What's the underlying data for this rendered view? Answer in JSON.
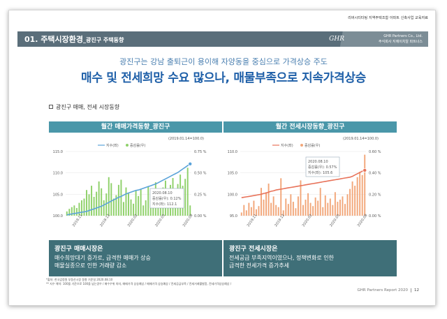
{
  "top_note": "리버시티타팅 지역주택조합 아파트 신축사업 교육자료",
  "header": {
    "title": "01. 주택시장환경",
    "subtitle": "_광진구 주택동향",
    "logo": "GHR",
    "company_en": "GHR Partners Co., Ltd.",
    "company_ko": "주식회사 지에이치알 파트너스"
  },
  "sub_headline": "광진구는 강남 출퇴근이 용이해 자양동을 중심으로 가격상승 주도",
  "headline": "매수 및 전세희망 수요 많으나, 매물부족으로 지속가격상승",
  "section_label": "광진구 매매, 전세 시장동향",
  "charts": [
    {
      "title": "월간 매매가격동향_광진구",
      "base_note": "(2019.01.14=100.0)",
      "legend_line": "지수(좌)",
      "legend_bar": "증감률(우)",
      "tooltip_date": "2020.08.10",
      "tooltip_rate": "증감률(우): 0.12%",
      "tooltip_index": "지수(좌): 112.1",
      "desc_title": "광진구 매매시장은",
      "desc_text_1": "매수희망대기 증가로, 급격한 매매가 상승",
      "desc_text_2": "매물실종으로 인한 거래량 감소"
    },
    {
      "title": "월간 전세시장동향_광진구",
      "base_note": "(2019.01.14=100.0)",
      "legend_line": "지수(좌)",
      "legend_bar": "증감률(우)",
      "tooltip_date": "2020.08.10",
      "tooltip_rate": "증감률(우): 0.57%",
      "tooltip_index": "지수(좌): 105.6",
      "desc_title": "광진구 전세시장은",
      "desc_text_1": "전세공급 부족지역이였으나, 정책변화로 인한",
      "desc_text_2": "급격한 전세가격 증가추세"
    }
  ],
  "chart_data": [
    {
      "type": "bar",
      "title": "월간 매매가격동향_광진구",
      "ylim_left": [
        100.0,
        115.0
      ],
      "ylim_right": [
        0.0,
        0.75
      ],
      "yticks_left": [
        "115.0",
        "110.0",
        "105.0",
        "100.0"
      ],
      "yticks_right": [
        "0.75 %",
        "0.50 %",
        "0.25 %",
        "0.00 %"
      ],
      "xticks": [
        "2019.11",
        "2019.12",
        "2020.02",
        "2020.05",
        "2020.08"
      ],
      "series": [
        {
          "name": "지수(좌)",
          "kind": "line",
          "color": "#5aa3d9",
          "values": [
            100.2,
            100.3,
            100.4,
            100.5,
            100.6,
            100.7,
            100.8,
            100.9,
            101.0,
            101.2,
            101.4,
            101.6,
            101.8,
            102.0,
            102.2,
            102.5,
            102.8,
            103.1,
            103.4,
            103.7,
            104.0,
            104.3,
            104.5,
            104.8,
            105.1,
            105.3,
            105.5,
            105.7,
            105.9,
            106.0,
            106.2,
            106.4,
            106.6,
            106.8,
            107.0,
            107.2,
            107.4,
            107.7,
            108.0,
            108.3,
            108.6,
            108.9,
            109.2,
            109.5,
            109.8,
            110.1,
            110.5,
            110.9,
            111.3,
            111.7,
            112.1
          ]
        },
        {
          "name": "증감률(우)",
          "kind": "bar",
          "color": "#8fd16a",
          "values": [
            0.05,
            0.08,
            0.1,
            0.12,
            0.09,
            0.15,
            0.18,
            0.2,
            0.3,
            0.25,
            0.35,
            0.22,
            0.28,
            0.4,
            0.32,
            0.18,
            0.26,
            0.45,
            0.38,
            0.2,
            0.24,
            0.36,
            0.42,
            0.16,
            0.33,
            0.27,
            0.19,
            0.14,
            0.29,
            0.23,
            0.31,
            0.12,
            0.18,
            0.34,
            0.27,
            0.21,
            0.39,
            0.28,
            0.25,
            0.33,
            0.41,
            0.3,
            0.36,
            0.44,
            0.29,
            0.37,
            0.48,
            0.35,
            0.43,
            0.56,
            0.12
          ]
        }
      ]
    },
    {
      "type": "bar",
      "title": "월간 전세시장동향_광진구",
      "ylim_left": [
        95.0,
        110.0
      ],
      "ylim_right": [
        0.0,
        0.6
      ],
      "yticks_left": [
        "110.0",
        "105.0",
        "100.0",
        "95.0"
      ],
      "yticks_right": [
        "0.60 %",
        "0.40 %",
        "0.20 %",
        "0.00 %"
      ],
      "xticks": [
        "2019.11",
        "2019.12",
        "2020.02",
        "2020.05",
        "2020.08"
      ],
      "series": [
        {
          "name": "지수(좌)",
          "kind": "line",
          "color": "#e8735a",
          "values": [
            99.2,
            99.3,
            99.4,
            99.5,
            99.6,
            99.7,
            99.8,
            99.9,
            100.0,
            100.2,
            100.3,
            100.5,
            100.7,
            100.8,
            101.0,
            101.1,
            101.2,
            101.3,
            101.4,
            101.5,
            101.6,
            101.7,
            101.8,
            101.9,
            102.0,
            102.1,
            102.2,
            102.3,
            102.4,
            102.5,
            102.6,
            102.7,
            102.8,
            102.9,
            103.0,
            103.1,
            103.2,
            103.3,
            103.4,
            103.5,
            103.6,
            103.7,
            103.8,
            103.9,
            104.0,
            104.2,
            104.5,
            104.8,
            105.1,
            105.4,
            105.6
          ]
        },
        {
          "name": "증감률(우)",
          "kind": "bar",
          "color": "#f2a77a",
          "values": [
            0.03,
            0.1,
            0.05,
            0.12,
            0.08,
            0.14,
            0.06,
            0.09,
            0.26,
            0.15,
            0.22,
            0.3,
            0.12,
            0.18,
            0.1,
            0.08,
            0.35,
            0.05,
            0.16,
            0.11,
            0.2,
            0.13,
            0.07,
            0.18,
            0.33,
            0.1,
            0.15,
            0.21,
            0.12,
            0.09,
            0.17,
            0.14,
            0.26,
            0.08,
            0.19,
            0.12,
            0.16,
            0.1,
            0.22,
            0.13,
            0.15,
            0.18,
            0.11,
            0.2,
            0.25,
            0.32,
            0.28,
            0.36,
            0.41,
            0.38,
            0.57
          ]
        }
      ]
    }
  ],
  "footnote_1": "*출처: 한국감정원 부동산시장 동향 기준일 2020.08.10",
  "footnote_2": "** 지수 해석: 100을 기준으로 100을 넘는경우 / 매수우위 의미, 매매가격 상승예상 / 매매가격 상승예상 / 전세공급부족 / 전세거래활발함, 전세가격상승예상 /",
  "footer": "GHR Partners Report 2020",
  "page": "12"
}
